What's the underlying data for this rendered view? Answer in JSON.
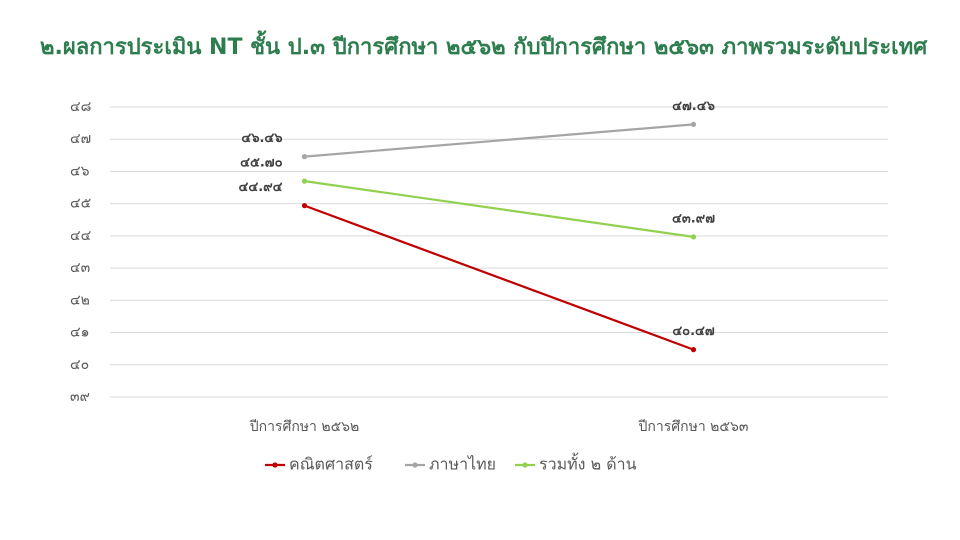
{
  "chart_data": {
    "type": "line",
    "title": "๒.ผลการประเมิน NT ชั้น ป.๓ ปีการศึกษา ๒๕๖๒ กับปีการศึกษา ๒๕๖๓ ภาพรวมระดับประเทศ",
    "categories": [
      "ปีการศึกษา ๒๕๖๒",
      "ปีการศึกษา ๒๕๖๓"
    ],
    "series": [
      {
        "name": "คณิตศาสตร์",
        "color": "#c00000",
        "values": [
          44.94,
          40.47
        ],
        "value_labels": [
          "๔๔.๙๔",
          "๔๐.๔๗"
        ]
      },
      {
        "name": "ภาษาไทย",
        "color": "#a5a5a5",
        "values": [
          46.46,
          47.46
        ],
        "value_labels": [
          "๔๖.๔๖",
          "๔๗.๔๖"
        ]
      },
      {
        "name": "รวมทั้ง ๒ ด้าน",
        "color": "#92d050",
        "values": [
          45.7,
          43.97
        ],
        "value_labels": [
          "๔๕.๗๐",
          "๔๓.๙๗"
        ]
      }
    ],
    "ylim": [
      39,
      48
    ],
    "yticks": [
      {
        "value": 39,
        "label": "๓๙"
      },
      {
        "value": 40,
        "label": "๔๐"
      },
      {
        "value": 41,
        "label": "๔๑"
      },
      {
        "value": 42,
        "label": "๔๒"
      },
      {
        "value": 43,
        "label": "๔๓"
      },
      {
        "value": 44,
        "label": "๔๔"
      },
      {
        "value": 45,
        "label": "๔๕"
      },
      {
        "value": 46,
        "label": "๔๖"
      },
      {
        "value": 47,
        "label": "๔๗"
      },
      {
        "value": 48,
        "label": "๔๘"
      }
    ],
    "grid": true,
    "legend": "bottom"
  }
}
